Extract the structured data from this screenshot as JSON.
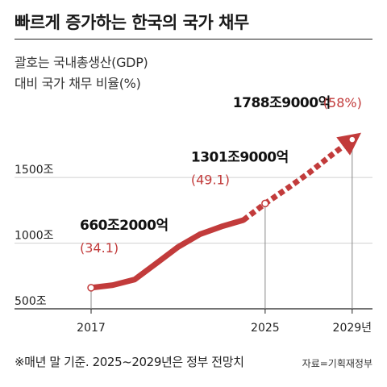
{
  "title": "빠르게 증가하는 한국의 국가 채무",
  "subtitle_lines": [
    "괄호는 국내총생산(GDP)",
    "대비 국가 채무 비율(%)"
  ],
  "footnote": "※매년 말 기준. 2025~2029년은 정부 전망치",
  "source": "자료=기획재정부",
  "colors": {
    "series": "#c23b3b",
    "text": "#222222",
    "grid": "#d0d0d0",
    "axis": "#222222"
  },
  "chart_data": {
    "type": "line",
    "x_ticks": [
      {
        "x": 2017,
        "label": "2017"
      },
      {
        "x": 2025,
        "label": "2025"
      },
      {
        "x": 2029,
        "label": "2029년"
      }
    ],
    "y_ticks": [
      {
        "y": 500,
        "label": "500조"
      },
      {
        "y": 1000,
        "label": "1000조"
      },
      {
        "y": 1500,
        "label": "1500조"
      }
    ],
    "xlim": [
      2017,
      2029.6
    ],
    "ylim": [
      500,
      1900
    ],
    "grid": true,
    "series": [
      {
        "style": "solid",
        "points": [
          {
            "x": 2017,
            "y": 660.2
          },
          {
            "x": 2018,
            "y": 680.5
          },
          {
            "x": 2019,
            "y": 723.2
          },
          {
            "x": 2020,
            "y": 846.6
          },
          {
            "x": 2021,
            "y": 970.7
          },
          {
            "x": 2022,
            "y": 1067.4
          },
          {
            "x": 2023,
            "y": 1126.7
          },
          {
            "x": 2024,
            "y": 1175.2
          }
        ]
      },
      {
        "style": "dashed",
        "points": [
          {
            "x": 2024,
            "y": 1175.2
          },
          {
            "x": 2025,
            "y": 1301.9
          },
          {
            "x": 2026,
            "y": 1415.2
          },
          {
            "x": 2027,
            "y": 1532.5
          },
          {
            "x": 2028,
            "y": 1664.3
          },
          {
            "x": 2029,
            "y": 1788.9
          }
        ]
      }
    ],
    "annotations": [
      {
        "x": 2017,
        "y": 660.2,
        "value": "660조2000억",
        "ratio": "(34.1)"
      },
      {
        "x": 2025,
        "y": 1301.9,
        "value": "1301조9000억",
        "ratio": "(49.1)"
      },
      {
        "x": 2029,
        "y": 1788.9,
        "value": "1788조9000억",
        "ratio": "(58%)"
      }
    ]
  }
}
